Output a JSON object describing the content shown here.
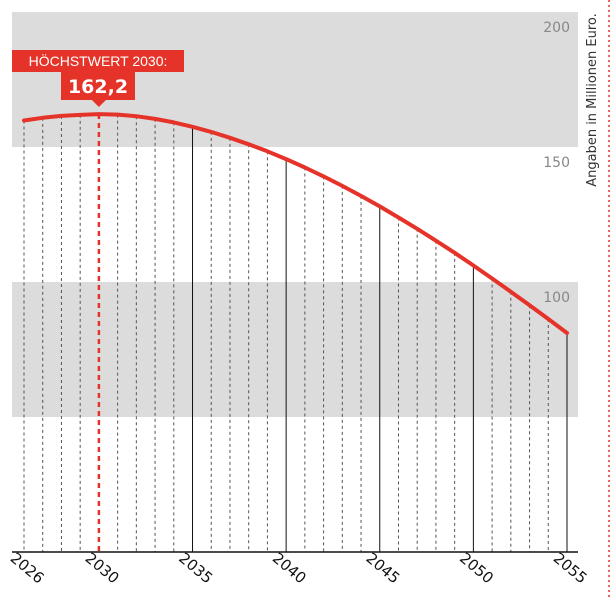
{
  "chart_data": {
    "type": "line",
    "title": "",
    "xlabel": "",
    "ylabel": "Angaben in Millionen Euro.",
    "x": [
      2026,
      2027,
      2028,
      2029,
      2030,
      2031,
      2032,
      2033,
      2034,
      2035,
      2036,
      2037,
      2038,
      2039,
      2040,
      2041,
      2042,
      2043,
      2044,
      2045,
      2046,
      2047,
      2048,
      2049,
      2050,
      2051,
      2052,
      2053,
      2054,
      2055
    ],
    "series": [
      {
        "values": [
          159.8,
          160.8,
          161.5,
          161.9,
          162.2,
          162.0,
          161.4,
          160.4,
          159.1,
          157.5,
          155.6,
          153.4,
          151.0,
          148.4,
          145.5,
          142.4,
          139.1,
          135.6,
          131.9,
          128.0,
          123.9,
          119.7,
          115.3,
          110.8,
          106.1,
          101.3,
          96.4,
          91.4,
          86.3,
          81.1
        ]
      }
    ],
    "x_ticks": [
      "2026",
      "2030",
      "2035",
      "2040",
      "2045",
      "2050",
      "2055"
    ],
    "y_ticks": [
      "200",
      "150",
      "100"
    ],
    "xlim": [
      2026,
      2055
    ],
    "ylim": [
      0,
      200
    ],
    "grid": true,
    "annotation": {
      "label": "HÖCHSTWERT 2030:",
      "value_text": "162,2",
      "x": 2030,
      "y": 162.2
    },
    "colors": {
      "line": "#e63329",
      "band": "#dcdcdc",
      "callout": "#e63329"
    }
  }
}
